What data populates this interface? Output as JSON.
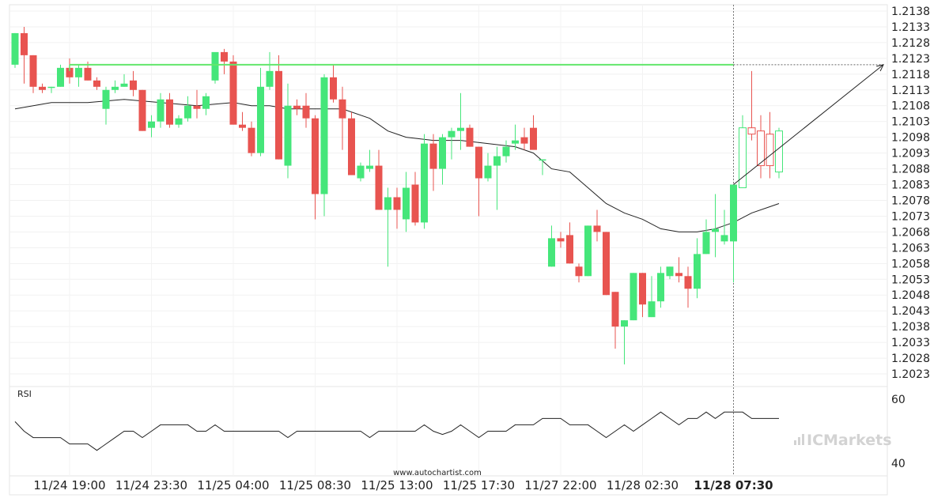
{
  "chart_data": {
    "type": "candlestick",
    "y_range": [
      1.2019,
      1.214
    ],
    "y_ticks": [
      "1.2138",
      "1.2133",
      "1.2128",
      "1.2123",
      "1.2118",
      "1.2113",
      "1.2108",
      "1.2103",
      "1.2098",
      "1.2093",
      "1.2088",
      "1.2083",
      "1.2078",
      "1.2073",
      "1.2068",
      "1.2063",
      "1.2058",
      "1.2053",
      "1.2048",
      "1.2043",
      "1.2038",
      "1.2033",
      "1.2028",
      "1.2023"
    ],
    "x_labels": [
      {
        "label": "11/24 19:00",
        "index": 6,
        "bold": false
      },
      {
        "label": "11/24 23:30",
        "index": 15,
        "bold": false
      },
      {
        "label": "11/25 04:00",
        "index": 24,
        "bold": false
      },
      {
        "label": "11/25 08:30",
        "index": 33,
        "bold": false
      },
      {
        "label": "11/25 13:00",
        "index": 42,
        "bold": false
      },
      {
        "label": "11/25 17:30",
        "index": 51,
        "bold": false
      },
      {
        "label": "11/27 22:00",
        "index": 60,
        "bold": false
      },
      {
        "label": "11/28 02:30",
        "index": 69,
        "bold": false
      },
      {
        "label": "11/28 07:30",
        "index": 79,
        "bold": true
      }
    ],
    "candles": [
      [
        1.2121,
        1.2131,
        1.212,
        1.2131
      ],
      [
        1.2131,
        1.2133,
        1.2115,
        1.2124
      ],
      [
        1.2124,
        1.2124,
        1.2112,
        1.2114
      ],
      [
        1.2114,
        1.2115,
        1.2112,
        1.2113
      ],
      [
        1.2114,
        1.2114,
        1.2112,
        1.2114
      ],
      [
        1.2114,
        1.2121,
        1.2114,
        1.212
      ],
      [
        1.212,
        1.2123,
        1.2115,
        1.2117
      ],
      [
        1.2117,
        1.2121,
        1.2114,
        1.212
      ],
      [
        1.212,
        1.2122,
        1.2116,
        1.2116
      ],
      [
        1.2116,
        1.2117,
        1.2113,
        1.2114
      ],
      [
        1.2107,
        1.2114,
        1.2102,
        1.2113
      ],
      [
        1.2113,
        1.2116,
        1.2112,
        1.2114
      ],
      [
        1.2114,
        1.2118,
        1.2114,
        1.2115
      ],
      [
        1.2116,
        1.2119,
        1.2111,
        1.2113
      ],
      [
        1.2113,
        1.2113,
        1.21,
        1.21
      ],
      [
        1.2101,
        1.2105,
        1.2098,
        1.2103
      ],
      [
        1.2103,
        1.2112,
        1.2101,
        1.211
      ],
      [
        1.211,
        1.2112,
        1.2101,
        1.2102
      ],
      [
        1.2102,
        1.2105,
        1.2101,
        1.2104
      ],
      [
        1.2104,
        1.2111,
        1.2103,
        1.2108
      ],
      [
        1.2108,
        1.2113,
        1.2104,
        1.2107
      ],
      [
        1.2107,
        1.2112,
        1.2105,
        1.2111
      ],
      [
        1.2116,
        1.2124,
        1.2115,
        1.2125
      ],
      [
        1.2125,
        1.2126,
        1.2118,
        1.2122
      ],
      [
        1.2122,
        1.2124,
        1.2102,
        1.2102
      ],
      [
        1.2102,
        1.2106,
        1.21,
        1.2101
      ],
      [
        1.2101,
        1.2103,
        1.2092,
        1.2093
      ],
      [
        1.2093,
        1.212,
        1.2092,
        1.2114
      ],
      [
        1.2114,
        1.2125,
        1.2113,
        1.2119
      ],
      [
        1.2119,
        1.2124,
        1.2091,
        1.2091
      ],
      [
        1.2089,
        1.2115,
        1.2085,
        1.2108
      ],
      [
        1.2108,
        1.211,
        1.2105,
        1.2107
      ],
      [
        1.2108,
        1.2112,
        1.2101,
        1.2104
      ],
      [
        1.2104,
        1.2105,
        1.2072,
        1.208
      ],
      [
        1.208,
        1.2118,
        1.2073,
        1.2117
      ],
      [
        1.2117,
        1.2121,
        1.2109,
        1.211
      ],
      [
        1.211,
        1.2114,
        1.2094,
        1.2104
      ],
      [
        1.2104,
        1.2106,
        1.2086,
        1.2086
      ],
      [
        1.2085,
        1.209,
        1.2084,
        1.2089
      ],
      [
        1.2088,
        1.2094,
        1.2087,
        1.2089
      ],
      [
        1.2089,
        1.2094,
        1.2075,
        1.2075
      ],
      [
        1.2075,
        1.2082,
        1.2057,
        1.2079
      ],
      [
        1.2079,
        1.2082,
        1.2069,
        1.2075
      ],
      [
        1.2072,
        1.2087,
        1.2068,
        1.2082
      ],
      [
        1.2083,
        1.2087,
        1.207,
        1.2071
      ],
      [
        1.2071,
        1.2099,
        1.2069,
        1.2096
      ],
      [
        1.2096,
        1.2099,
        1.2081,
        1.2088
      ],
      [
        1.2088,
        1.2099,
        1.2083,
        1.2098
      ],
      [
        1.2098,
        1.2101,
        1.2091,
        1.21
      ],
      [
        1.21,
        1.2112,
        1.2094,
        1.2101
      ],
      [
        1.2101,
        1.2102,
        1.2095,
        1.2095
      ],
      [
        1.2095,
        1.2095,
        1.2073,
        1.2085
      ],
      [
        1.2085,
        1.2093,
        1.2084,
        1.2089
      ],
      [
        1.2089,
        1.2095,
        1.2075,
        1.2092
      ],
      [
        1.2092,
        1.2097,
        1.209,
        1.2095
      ],
      [
        1.2096,
        1.2102,
        1.2094,
        1.2097
      ],
      [
        1.2098,
        1.2101,
        1.2094,
        1.2096
      ],
      [
        1.2101,
        1.2105,
        1.2095,
        1.2094
      ],
      [
        1.2091,
        1.2091,
        1.2086,
        1.2091
      ],
      [
        1.2057,
        1.207,
        1.2057,
        1.2066
      ],
      [
        1.2066,
        1.2068,
        1.2063,
        1.2065
      ],
      [
        1.2067,
        1.2071,
        1.2058,
        1.2058
      ],
      [
        1.2057,
        1.2058,
        1.2052,
        1.2054
      ],
      [
        1.2054,
        1.207,
        1.2054,
        1.207
      ],
      [
        1.207,
        1.2075,
        1.2065,
        1.2068
      ],
      [
        1.2068,
        1.2068,
        1.2048,
        1.2048
      ],
      [
        1.2049,
        1.2049,
        1.2031,
        1.2038
      ],
      [
        1.2038,
        1.204,
        1.2026,
        1.204
      ],
      [
        1.204,
        1.2055,
        1.204,
        1.2055
      ],
      [
        1.2055,
        1.2055,
        1.2041,
        1.2045
      ],
      [
        1.2041,
        1.2054,
        1.2041,
        1.2046
      ],
      [
        1.2046,
        1.2057,
        1.2044,
        1.2055
      ],
      [
        1.2054,
        1.2057,
        1.2053,
        1.2057
      ],
      [
        1.2055,
        1.206,
        1.2052,
        1.2054
      ],
      [
        1.2054,
        1.2057,
        1.2044,
        1.205
      ],
      [
        1.205,
        1.2066,
        1.2047,
        1.2061
      ],
      [
        1.2061,
        1.2072,
        1.2061,
        1.2068
      ],
      [
        1.2068,
        1.208,
        1.206,
        1.2069
      ],
      [
        1.2065,
        1.2075,
        1.2064,
        1.2067
      ],
      [
        1.2065,
        1.2083,
        1.2052,
        1.2083
      ],
      [
        1.2082,
        1.2105,
        1.2082,
        1.2101
      ],
      [
        1.2101,
        1.2119,
        1.2097,
        1.2099
      ],
      [
        1.21,
        1.2105,
        1.2085,
        1.2089
      ],
      [
        1.2099,
        1.2106,
        1.2085,
        1.2089
      ],
      [
        1.2087,
        1.2101,
        1.2085,
        1.21
      ]
    ],
    "moving_average": [
      [
        0,
        1.2107
      ],
      [
        4,
        1.2109
      ],
      [
        8,
        1.2109
      ],
      [
        12,
        1.211
      ],
      [
        16,
        1.2109
      ],
      [
        20,
        1.2108
      ],
      [
        24,
        1.2109
      ],
      [
        26,
        1.2108
      ],
      [
        28,
        1.2108
      ],
      [
        30,
        1.2107
      ],
      [
        33,
        1.2107
      ],
      [
        36,
        1.2107
      ],
      [
        39,
        1.2104
      ],
      [
        41,
        1.21
      ],
      [
        43,
        1.2098
      ],
      [
        46,
        1.2097
      ],
      [
        49,
        1.2097
      ],
      [
        52,
        1.2096
      ],
      [
        55,
        1.2095
      ],
      [
        57,
        1.2093
      ],
      [
        59,
        1.2088
      ],
      [
        61,
        1.2087
      ],
      [
        63,
        1.2082
      ],
      [
        65,
        1.2077
      ],
      [
        67,
        1.2074
      ],
      [
        69,
        1.2072
      ],
      [
        71,
        1.2069
      ],
      [
        73,
        1.2068
      ],
      [
        75,
        1.2068
      ],
      [
        77,
        1.2069
      ],
      [
        79,
        1.2071
      ],
      [
        81,
        1.2074
      ],
      [
        83,
        1.2076
      ],
      [
        84,
        1.2077
      ]
    ],
    "resistance_level": 1.2121,
    "resistance_end_index": 79,
    "projection": {
      "from_index": 79,
      "from_price": 1.2083,
      "to_price": 1.2121
    },
    "marker_index": 79,
    "rsi": {
      "label": "RSI",
      "ticks": [
        "60",
        "40"
      ],
      "range": [
        36,
        64
      ],
      "values": [
        53,
        50,
        48,
        48,
        48,
        48,
        46,
        46,
        46,
        44,
        46,
        48,
        50,
        50,
        48,
        50,
        52,
        52,
        52,
        52,
        50,
        50,
        52,
        50,
        50,
        50,
        50,
        50,
        50,
        50,
        48,
        50,
        50,
        50,
        50,
        50,
        50,
        50,
        50,
        48,
        50,
        50,
        50,
        50,
        50,
        52,
        50,
        49,
        50,
        52,
        50,
        48,
        50,
        50,
        50,
        52,
        52,
        52,
        54,
        54,
        54,
        52,
        52,
        52,
        50,
        48,
        50,
        52,
        50,
        52,
        54,
        56,
        54,
        52,
        54,
        54,
        56,
        54,
        56,
        56,
        56,
        54,
        54,
        54,
        54
      ]
    },
    "colors": {
      "bull": "#45e67a",
      "bear": "#e85450",
      "level": "#62e76c",
      "line": "#222222"
    }
  },
  "watermark": "www.autochartist.com",
  "brand": "ICMarkets"
}
